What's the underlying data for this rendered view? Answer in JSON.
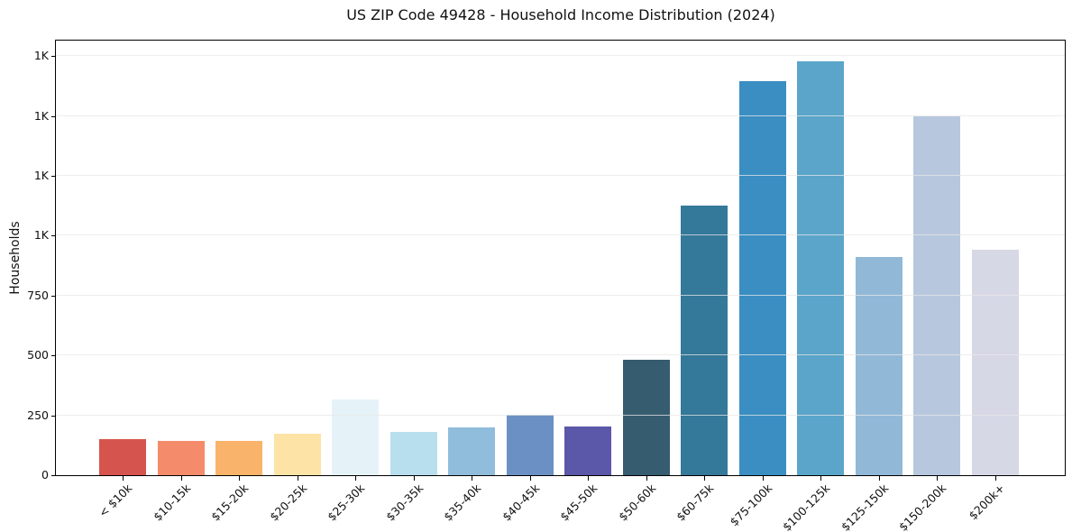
{
  "chart_data": {
    "type": "bar",
    "title": "US ZIP Code 49428 - Household Income Distribution (2024)",
    "xlabel": "",
    "ylabel": "Households",
    "categories": [
      "< $10k",
      "$10-15k",
      "$15-20k",
      "$20-25k",
      "$25-30k",
      "$30-35k",
      "$35-40k",
      "$40-45k",
      "$45-50k",
      "$50-60k",
      "$60-75k",
      "$75-100k",
      "$100-125k",
      "$125-150k",
      "$150-200k",
      "$200k+"
    ],
    "values": [
      150,
      145,
      145,
      172,
      315,
      180,
      200,
      252,
      203,
      483,
      1125,
      1645,
      1727,
      910,
      1500,
      940
    ],
    "bar_colors": [
      "#d6544e",
      "#f48b6b",
      "#f9b36a",
      "#fde3a5",
      "#e5f3f8",
      "#b7dfee",
      "#90bddb",
      "#6b91c4",
      "#5b57a9",
      "#365d6f",
      "#34789a",
      "#3a8ec2",
      "#5aa5c9",
      "#92b8d7",
      "#b7c8de",
      "#d7d8e6"
    ],
    "ylim": [
      0,
      1815
    ],
    "yticks": [
      {
        "value": 0,
        "label": "0"
      },
      {
        "value": 250,
        "label": "250"
      },
      {
        "value": 500,
        "label": "500"
      },
      {
        "value": 750,
        "label": "750"
      },
      {
        "value": 1000,
        "label": "1K"
      },
      {
        "value": 1250,
        "label": "1K"
      },
      {
        "value": 1500,
        "label": "1K"
      },
      {
        "value": 1750,
        "label": "1K"
      }
    ],
    "grid": "horizontal",
    "legend": "none"
  },
  "colors": {
    "grid_on_white": "#e9e9e9",
    "grid_over_bars": "rgba(231,231,231,0.75)",
    "spine": "#000000",
    "background": "#ffffff",
    "text": "#111111"
  }
}
